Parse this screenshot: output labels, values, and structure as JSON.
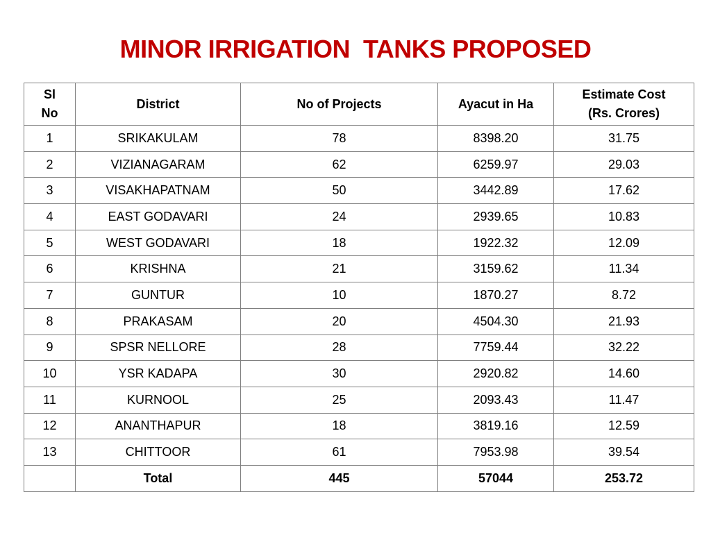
{
  "title": "MINOR IRRIGATION  TANKS PROPOSED",
  "table": {
    "headers": [
      "Sl\nNo",
      "District",
      "No of Projects",
      "Ayacut in Ha",
      "Estimate Cost\n(Rs. Crores)"
    ],
    "rows": [
      [
        "1",
        "SRIKAKULAM",
        "78",
        "8398.20",
        "31.75"
      ],
      [
        "2",
        "VIZIANAGARAM",
        "62",
        "6259.97",
        "29.03"
      ],
      [
        "3",
        "VISAKHAPATNAM",
        "50",
        "3442.89",
        "17.62"
      ],
      [
        "4",
        "EAST GODAVARI",
        "24",
        "2939.65",
        "10.83"
      ],
      [
        "5",
        "WEST GODAVARI",
        "18",
        "1922.32",
        "12.09"
      ],
      [
        "6",
        "KRISHNA",
        "21",
        "3159.62",
        "11.34"
      ],
      [
        "7",
        "GUNTUR",
        "10",
        "1870.27",
        "8.72"
      ],
      [
        "8",
        "PRAKASAM",
        "20",
        "4504.30",
        "21.93"
      ],
      [
        "9",
        "SPSR NELLORE",
        "28",
        "7759.44",
        "32.22"
      ],
      [
        "10",
        "YSR KADAPA",
        "30",
        "2920.82",
        "14.60"
      ],
      [
        "11",
        "KURNOOL",
        "25",
        "2093.43",
        "11.47"
      ],
      [
        "12",
        "ANANTHAPUR",
        "18",
        "3819.16",
        "12.59"
      ],
      [
        "13",
        "CHITTOOR",
        "61",
        "7953.98",
        "39.54"
      ]
    ],
    "total": [
      "Total",
      "445",
      "57044",
      "253.72"
    ]
  }
}
